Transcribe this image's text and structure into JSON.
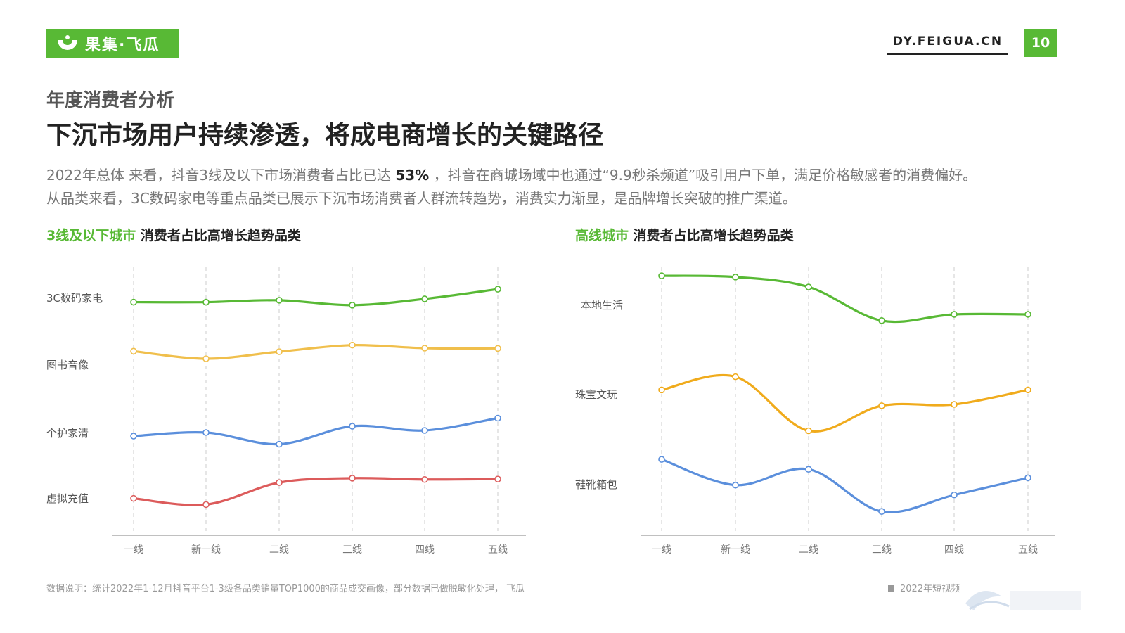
{
  "brand": {
    "name": "果集·飞瓜",
    "color": "#58b935"
  },
  "header": {
    "domain": "DY.FEIGUA.CN",
    "page_number": "10"
  },
  "section_label": "年度消费者分析",
  "title": "下沉市场用户持续渗透，将成电商增长的关键路径",
  "description": {
    "line1_prefix": "2022年总体 来看，抖音3线及以下市场消费者占比已达 ",
    "line1_highlight": "53%",
    "line1_suffix": " ，抖音在商城场域中也通过“9.9秒杀频道”吸引用户下单，满足价格敏感者的消费偏好。",
    "line2": "从品类来看，3C数码家电等重点品类已展示下沉市场消费者人群流转趋势，消费实力渐显，是品牌增长突破的推广渠道。"
  },
  "chart_data": [
    {
      "type": "line",
      "title_highlight": "3线及以下城市",
      "title_rest": " 消费者占比高增长趋势品类",
      "categories": [
        "一线",
        "新一线",
        "二线",
        "三线",
        "四线",
        "五线"
      ],
      "series": [
        {
          "name": "3C数码家电",
          "color": "#58b935",
          "values": [
            5.0,
            5.0,
            5.35,
            4.45,
            5.6,
            7.4
          ]
        },
        {
          "name": "图书音像",
          "color": "#f0bf4c",
          "values": [
            6.1,
            4.5,
            6.0,
            7.4,
            6.75,
            6.7
          ]
        },
        {
          "name": "个护家清",
          "color": "#5b8fdc",
          "values": [
            5.0,
            5.5,
            3.85,
            6.4,
            5.8,
            7.55
          ]
        },
        {
          "name": "虚拟充值",
          "color": "#dc5b5b",
          "values": [
            5.35,
            4.65,
            7.15,
            7.65,
            7.5,
            7.55
          ]
        }
      ]
    },
    {
      "type": "line",
      "title_highlight": "高线城市",
      "title_rest": " 消费者占比高增长趋势品类",
      "categories": [
        "一线",
        "新一线",
        "二线",
        "三线",
        "四线",
        "五线"
      ],
      "series": [
        {
          "name": "本地生活",
          "color": "#58b935",
          "values": [
            7.4,
            7.3,
            6.5,
            3.8,
            4.3,
            4.3
          ]
        },
        {
          "name": "珠宝文玩",
          "color": "#f0ab1c",
          "values": [
            6.5,
            7.5,
            3.4,
            5.3,
            5.4,
            6.5
          ]
        },
        {
          "name": "鞋靴箱包",
          "color": "#5b8fdc",
          "values": [
            7.1,
            5.15,
            6.35,
            3.15,
            4.4,
            5.7
          ]
        }
      ]
    }
  ],
  "footer": {
    "note": "数据说明：统计2022年1-12月抖音平台1-3级各品类销量TOP1000的商品成交画像，部分数据已做脱敏化处理， 飞瓜",
    "source": "2022年短视频"
  }
}
